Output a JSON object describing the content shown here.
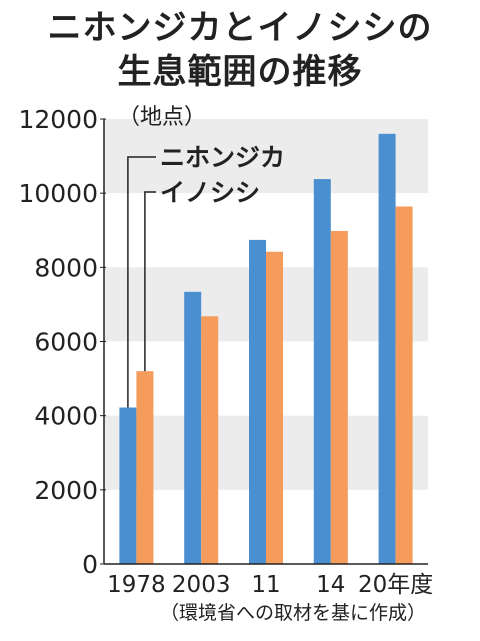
{
  "title_line1": "ニホンジカとイノシシの",
  "title_line2": "生息範囲の推移",
  "source": "（環境省への取材を基に作成）",
  "chart_data": {
    "type": "bar",
    "categories": [
      "1978",
      "2003",
      "11",
      "14",
      "20年度"
    ],
    "series": [
      {
        "name": "ニホンジカ",
        "values": [
          4220,
          7340,
          8740,
          10380,
          11600
        ]
      },
      {
        "name": "イノシシ",
        "values": [
          5200,
          6680,
          8420,
          8980,
          9640
        ]
      }
    ],
    "ylabel": "（地点）",
    "ylim": [
      0,
      12000
    ],
    "yticks": [
      "0",
      "2000",
      "4000",
      "6000",
      "8000",
      "10000",
      "12000"
    ],
    "grid": "alternating bands",
    "legend": "top-left, label lines to first bars",
    "colors": {
      "series": [
        "#4a90d0",
        "#f59b5b"
      ],
      "band": "#ececec"
    }
  }
}
